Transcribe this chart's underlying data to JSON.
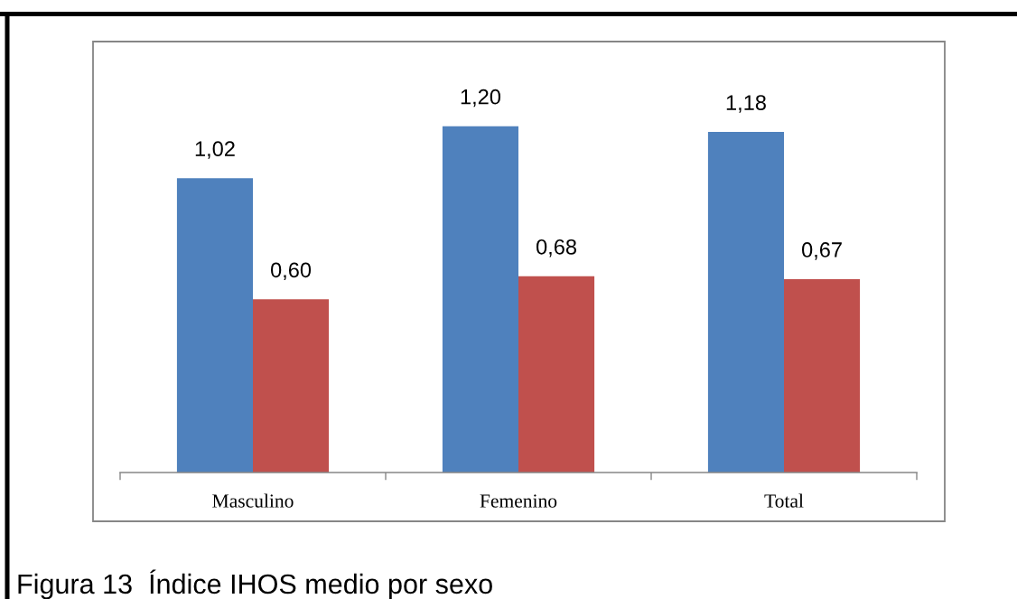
{
  "chart_data": {
    "type": "bar",
    "categories": [
      "Masculino",
      "Femenino",
      "Total"
    ],
    "series": [
      {
        "color": "#4f81bd",
        "values": [
          1.02,
          1.2,
          1.18
        ],
        "value_labels": [
          "1,02",
          "1,20",
          "1,18"
        ]
      },
      {
        "color": "#c0504d",
        "values": [
          0.6,
          0.68,
          0.67
        ],
        "value_labels": [
          "0,60",
          "0,68",
          "0,67"
        ]
      }
    ],
    "annotations": [
      "Figura 13  Índice IHOS medio por sexo"
    ]
  }
}
